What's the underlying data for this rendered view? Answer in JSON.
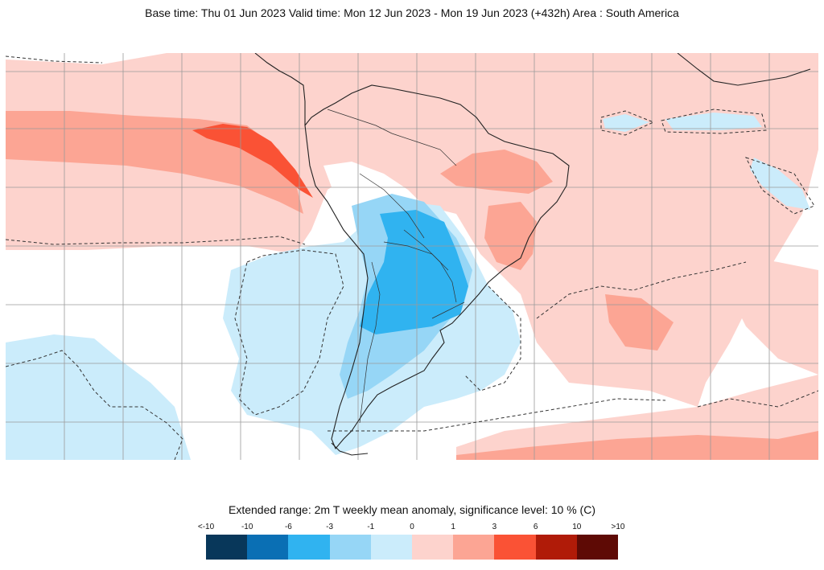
{
  "title": "Base time: Thu 01 Jun 2023 Valid time: Mon 12 Jun 2023 - Mon 19 Jun 2023 (+432h) Area : South America",
  "caption": "Extended range: 2m T weekly mean anomaly, significance level: 10 % (C)",
  "legend": {
    "ticks": [
      "<-10",
      "-10",
      "-6",
      "-3",
      "-1",
      "0",
      "1",
      "3",
      "6",
      "10",
      ">10"
    ],
    "colors": [
      "#08375a",
      "#0a6fb4",
      "#30b3f0",
      "#96d6f6",
      "#cbecfb",
      "#fdd3cd",
      "#fca594",
      "#fa5235",
      "#b01b08",
      "#5e0a05"
    ]
  },
  "map_colors": {
    "ocean_background": "#ffffff",
    "warm_light": "#fdd3cd",
    "warm_medium": "#fca594",
    "warm_strong": "#fa5235",
    "cool_light": "#cbecfb",
    "cool_medium": "#96d6f6",
    "cool_strong": "#30b3f0",
    "coastline": "#222222",
    "gridline": "#9a9a9a",
    "significance_contour": "#333333"
  }
}
